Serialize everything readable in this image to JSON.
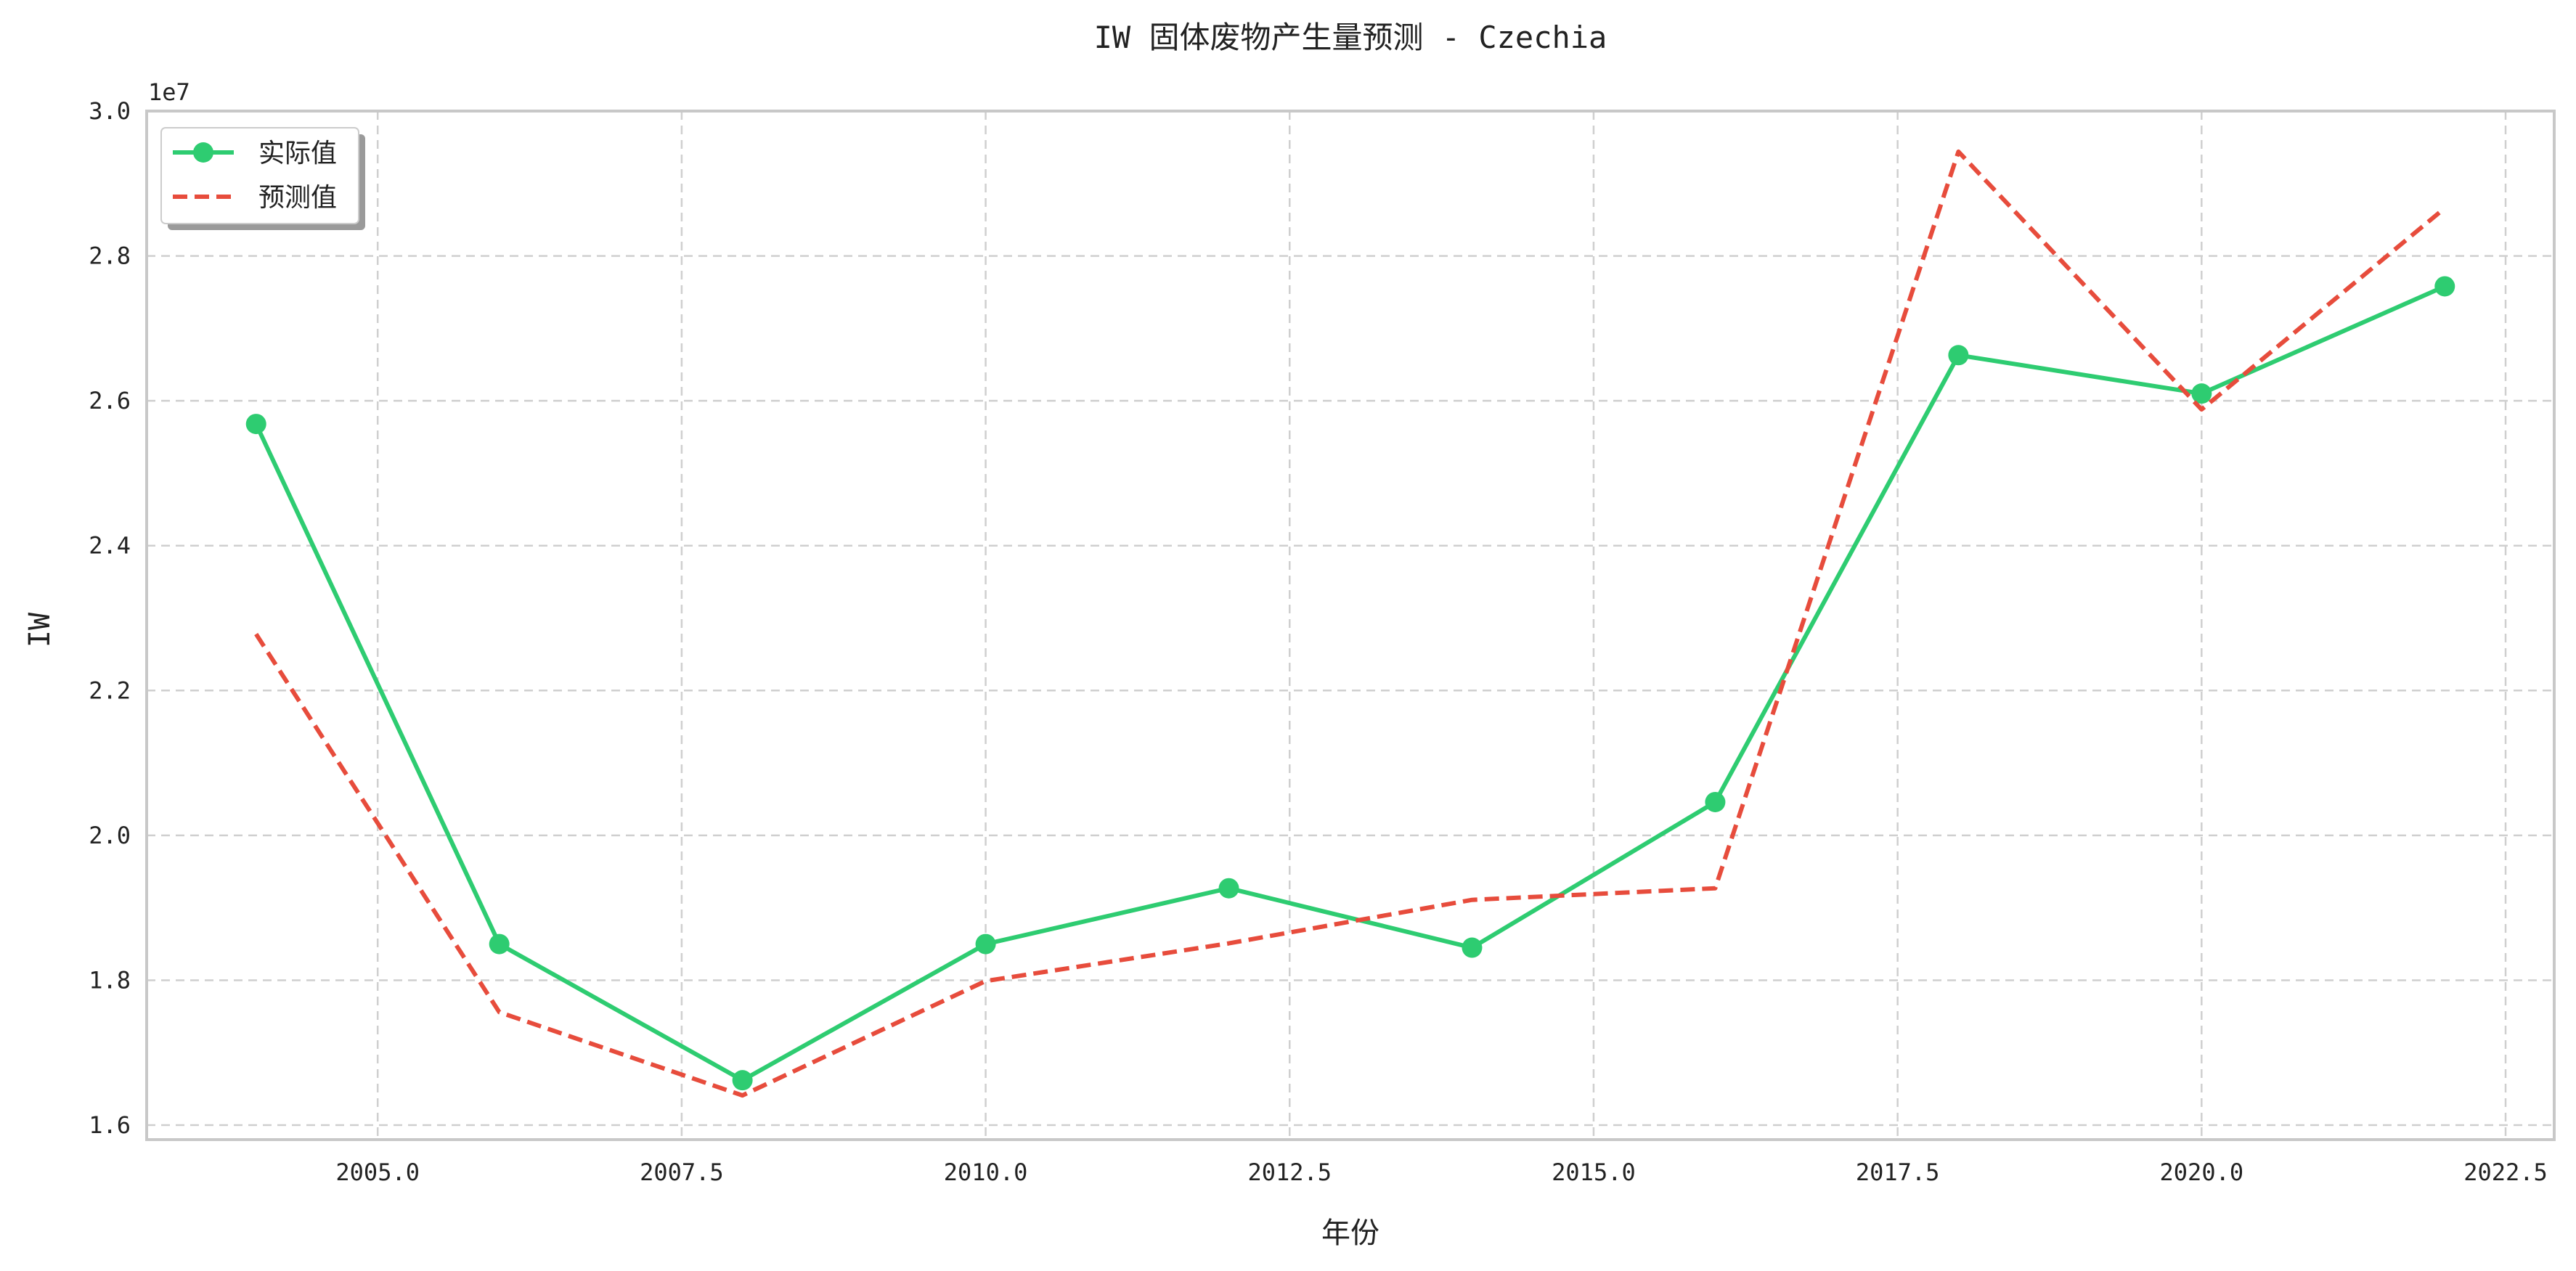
{
  "chart_data": {
    "type": "line",
    "title": "IW 固体废物产生量预测 - Czechia",
    "xlabel": "年份",
    "ylabel": "IW",
    "y_offset_label": "1e7",
    "xlim": [
      2003.1,
      2022.9
    ],
    "ylim": [
      15800000,
      30000000
    ],
    "x_ticks": [
      2005.0,
      2007.5,
      2010.0,
      2012.5,
      2015.0,
      2017.5,
      2020.0,
      2022.5
    ],
    "x_tick_labels": [
      "2005.0",
      "2007.5",
      "2010.0",
      "2012.5",
      "2015.0",
      "2017.5",
      "2020.0",
      "2022.5"
    ],
    "y_ticks": [
      16000000,
      18000000,
      20000000,
      22000000,
      24000000,
      26000000,
      28000000,
      30000000
    ],
    "y_tick_labels": [
      "1.6",
      "1.8",
      "2.0",
      "2.2",
      "2.4",
      "2.6",
      "2.8",
      "3.0"
    ],
    "grid": true,
    "legend_position": "top-left",
    "x": [
      2004,
      2006,
      2008,
      2010,
      2012,
      2014,
      2016,
      2018,
      2020,
      2022
    ],
    "series": [
      {
        "name": "实际值",
        "style": "solid-marker",
        "color": "#2ecc71",
        "values": [
          25680000,
          18500000,
          16620000,
          18500000,
          19270000,
          18450000,
          20460000,
          26630000,
          26100000,
          27580000
        ]
      },
      {
        "name": "预测值",
        "style": "dashed",
        "color": "#e74c3c",
        "values": [
          22780000,
          17560000,
          16410000,
          17990000,
          18510000,
          19110000,
          19270000,
          29440000,
          25880000,
          28660000
        ]
      }
    ]
  }
}
